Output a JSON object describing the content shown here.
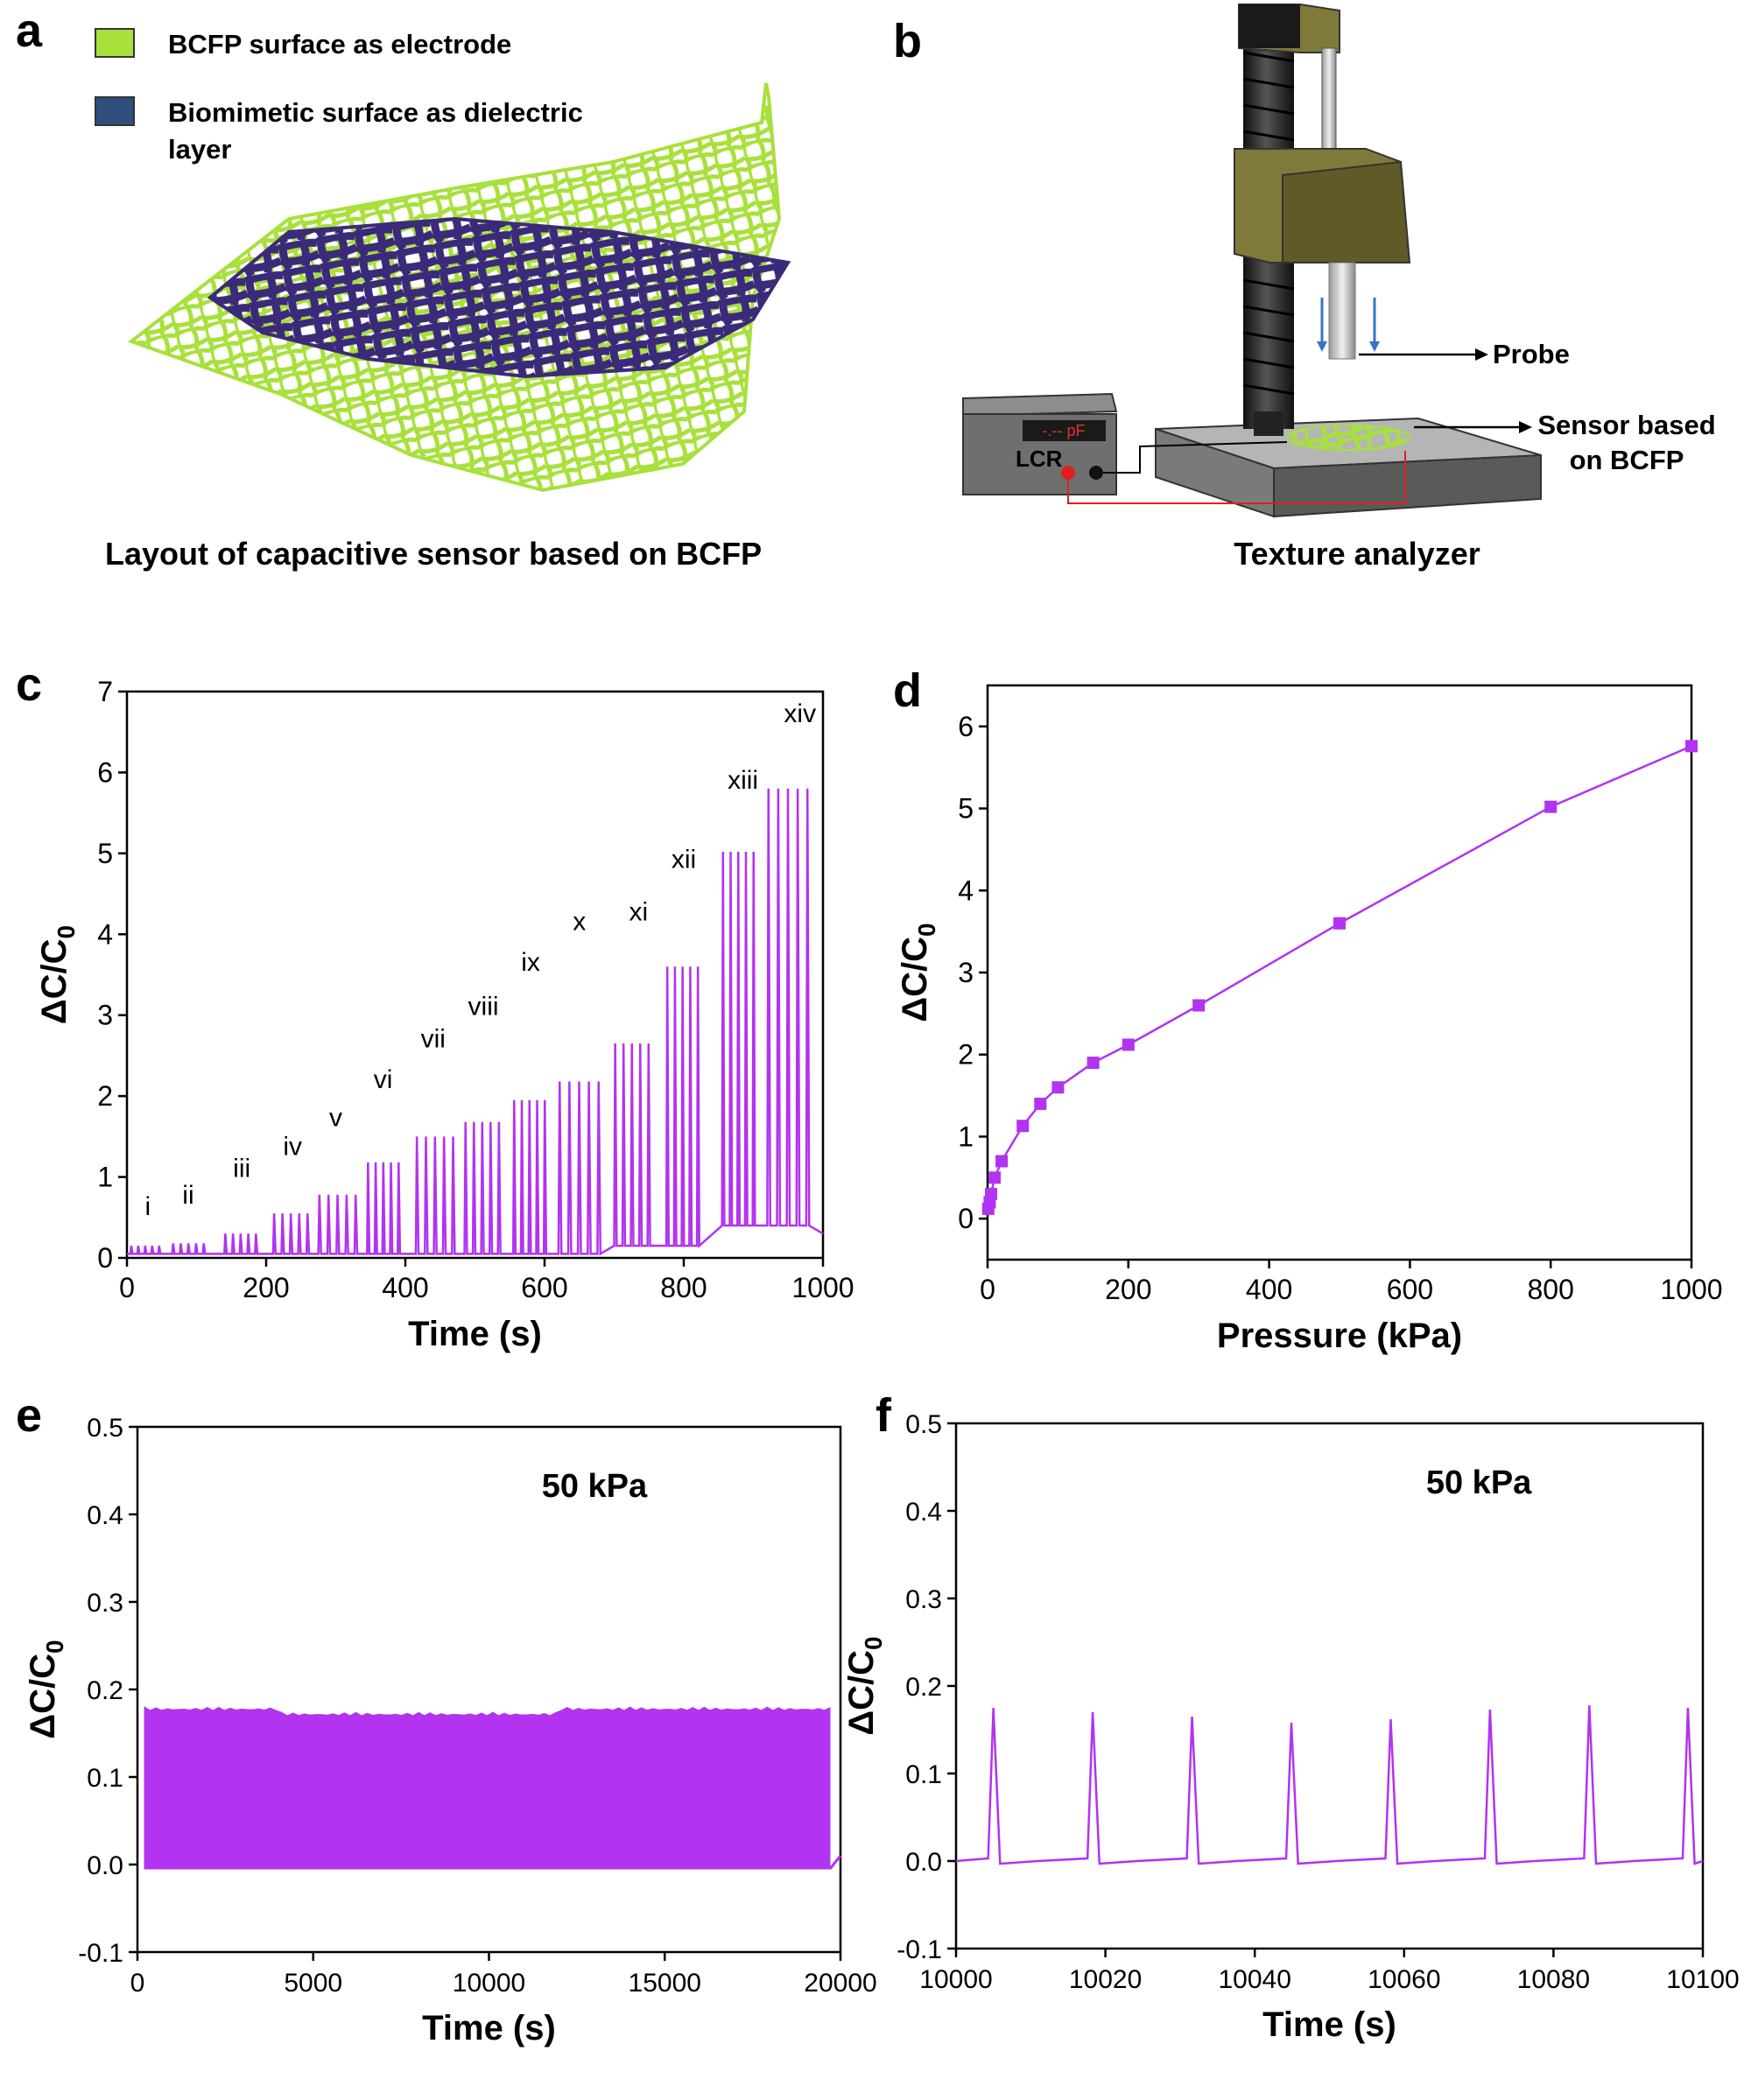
{
  "panels": {
    "a": {
      "label": "a",
      "legend": [
        {
          "text": "BCFP surface as electrode",
          "color": "#a8e03c"
        },
        {
          "text": "Biomimetic surface as dielectric layer",
          "color": "#2f4f7f"
        }
      ],
      "caption": "Layout of capacitive sensor based on BCFP"
    },
    "b": {
      "label": "b",
      "lcr_display": "-.-- pF",
      "lcr_label": "LCR",
      "probe_label": "Probe",
      "sensor_label_line1": "Sensor based",
      "sensor_label_line2": "on BCFP",
      "caption": "Texture analyzer"
    },
    "c": {
      "label": "c"
    },
    "d": {
      "label": "d"
    },
    "e": {
      "label": "e"
    },
    "f": {
      "label": "f"
    }
  },
  "colors": {
    "trace": "#b233f0",
    "electrode": "#a8e03c",
    "dielectric": "#3b2a7a",
    "machine_olive": "#7f7a3a"
  },
  "chart_data": [
    {
      "id": "c",
      "type": "line",
      "xlabel": "Time (s)",
      "ylabel": "ΔC/C0",
      "xlim": [
        0,
        1000
      ],
      "ylim": [
        0,
        7
      ],
      "xticks": [
        0,
        200,
        400,
        600,
        800,
        1000
      ],
      "yticks": [
        0,
        1,
        2,
        3,
        4,
        5,
        6,
        7
      ],
      "stages": [
        {
          "label": "i",
          "t_start": 5,
          "t_end": 55,
          "peak": 0.15,
          "label_t": 30,
          "label_y": 0.53
        },
        {
          "label": "ii",
          "t_start": 65,
          "t_end": 120,
          "peak": 0.18,
          "label_t": 88,
          "label_y": 0.67
        },
        {
          "label": "iii",
          "t_start": 140,
          "t_end": 195,
          "peak": 0.3,
          "label_t": 165,
          "label_y": 1.0
        },
        {
          "label": "iv",
          "t_start": 210,
          "t_end": 270,
          "peak": 0.55,
          "label_t": 238,
          "label_y": 1.27
        },
        {
          "label": "v",
          "t_start": 275,
          "t_end": 340,
          "peak": 0.78,
          "label_t": 300,
          "label_y": 1.63
        },
        {
          "label": "vi",
          "t_start": 345,
          "t_end": 400,
          "peak": 1.18,
          "label_t": 368,
          "label_y": 2.1
        },
        {
          "label": "vii",
          "t_start": 415,
          "t_end": 480,
          "peak": 1.5,
          "label_t": 440,
          "label_y": 2.6
        },
        {
          "label": "viii",
          "t_start": 485,
          "t_end": 545,
          "peak": 1.68,
          "label_t": 512,
          "label_y": 3.0
        },
        {
          "label": "ix",
          "t_start": 555,
          "t_end": 610,
          "peak": 1.95,
          "label_t": 580,
          "label_y": 3.55
        },
        {
          "label": "x",
          "t_start": 620,
          "t_end": 690,
          "peak": 2.18,
          "label_t": 650,
          "label_y": 4.05
        },
        {
          "label": "xi",
          "t_start": 700,
          "t_end": 760,
          "peak": 2.65,
          "label_t": 735,
          "label_y": 4.17
        },
        {
          "label": "xii",
          "t_start": 775,
          "t_end": 830,
          "peak": 3.6,
          "label_t": 800,
          "label_y": 4.82
        },
        {
          "label": "xiii",
          "t_start": 855,
          "t_end": 910,
          "peak": 5.02,
          "label_t": 885,
          "label_y": 5.8
        },
        {
          "label": "xiv",
          "t_start": 920,
          "t_end": 990,
          "peak": 5.8,
          "label_t": 967,
          "label_y": 6.62
        }
      ]
    },
    {
      "id": "d",
      "type": "line",
      "xlabel": "Pressure (kPa)",
      "ylabel": "ΔC/C0",
      "xlim": [
        0,
        1000
      ],
      "ylim": [
        -0.5,
        6.5
      ],
      "xticks": [
        0,
        200,
        400,
        600,
        800,
        1000
      ],
      "yticks": [
        0,
        1,
        2,
        3,
        4,
        5,
        6
      ],
      "x": [
        1,
        3,
        5,
        10,
        20,
        50,
        75,
        100,
        150,
        200,
        300,
        500,
        800,
        1000
      ],
      "y": [
        0.12,
        0.2,
        0.3,
        0.5,
        0.7,
        1.13,
        1.4,
        1.6,
        1.9,
        2.12,
        2.6,
        3.6,
        5.02,
        5.76
      ]
    },
    {
      "id": "e",
      "type": "area",
      "xlabel": "Time (s)",
      "ylabel": "ΔC/C0",
      "xlim": [
        0,
        20000
      ],
      "ylim": [
        -0.1,
        0.5
      ],
      "xticks": [
        0,
        5000,
        10000,
        15000,
        20000
      ],
      "yticks": [
        -0.1,
        0.0,
        0.1,
        0.2,
        0.3,
        0.4,
        0.5
      ],
      "annotation": "50 kPa",
      "band_min": -0.005,
      "band_max": 0.18,
      "t_end": 19700
    },
    {
      "id": "f",
      "type": "line",
      "xlabel": "Time (s)",
      "ylabel": "ΔC/C0",
      "xlim": [
        10000,
        10100
      ],
      "ylim": [
        -0.1,
        0.5
      ],
      "xticks": [
        10000,
        10020,
        10040,
        10060,
        10080,
        10100
      ],
      "yticks": [
        -0.1,
        0.0,
        0.1,
        0.2,
        0.3,
        0.4,
        0.5
      ],
      "annotation": "50 kPa",
      "peak_times": [
        10005,
        10018.3,
        10031.6,
        10044.9,
        10058.2,
        10071.5,
        10084.8,
        10098
      ],
      "peak_values": [
        0.175,
        0.17,
        0.165,
        0.158,
        0.162,
        0.173,
        0.178,
        0.175
      ],
      "baseline": 0.0
    }
  ]
}
